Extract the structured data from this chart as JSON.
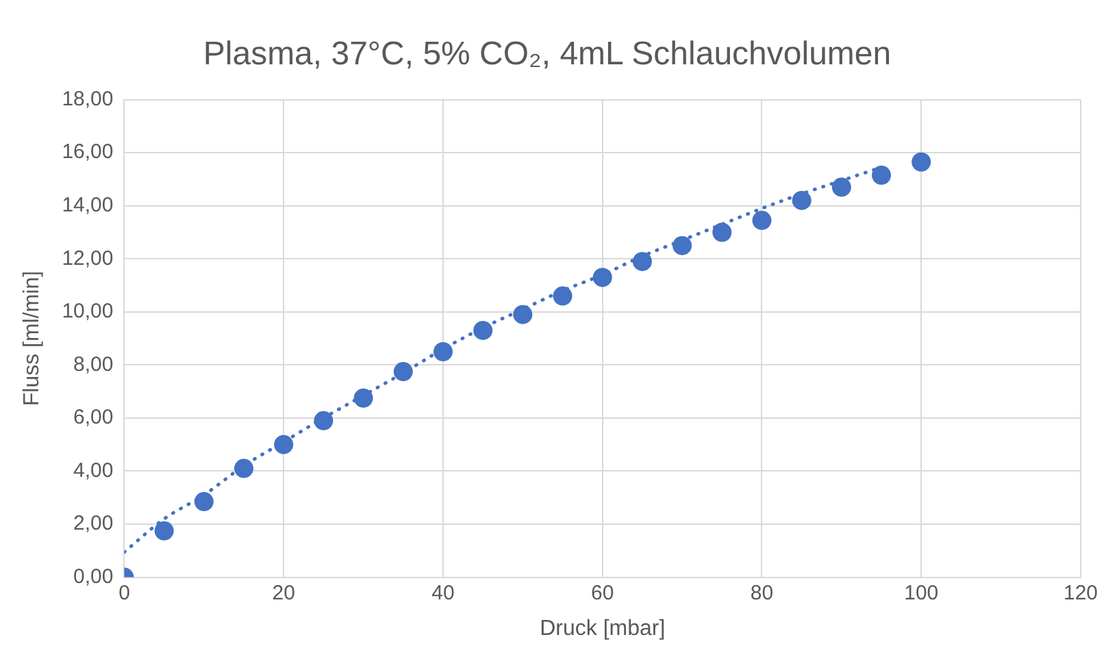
{
  "chart_data": {
    "type": "scatter",
    "title": "Plasma, 37°C, 5% CO₂, 4mL Schlauchvolumen",
    "xlabel": "Druck [mbar]",
    "ylabel": "Fluss [ml/min]",
    "x": [
      0,
      5,
      10,
      15,
      20,
      25,
      30,
      35,
      40,
      45,
      50,
      55,
      60,
      65,
      70,
      75,
      80,
      85,
      90,
      95,
      100
    ],
    "series": [
      {
        "color": "#4472c4",
        "marker": "circle",
        "values": [
          0,
          1.75,
          2.85,
          4.1,
          5.0,
          5.9,
          6.75,
          7.75,
          8.5,
          9.3,
          9.9,
          10.6,
          11.3,
          11.9,
          12.5,
          13.0,
          13.45,
          14.2,
          14.7,
          15.15,
          15.65
        ]
      },
      {
        "type": "line",
        "color": "#4472c4",
        "line_style": "dotted",
        "marker": "none",
        "x": [
          0,
          5,
          10,
          15,
          20,
          25,
          30,
          35,
          40,
          45,
          50,
          55,
          60,
          65,
          70,
          75,
          80,
          85,
          90,
          95
        ],
        "values": [
          0.95,
          2.2,
          3.1,
          4.2,
          5.1,
          6.0,
          6.85,
          7.7,
          8.6,
          9.4,
          10.1,
          10.8,
          11.4,
          12.1,
          12.7,
          13.3,
          13.9,
          14.45,
          14.95,
          15.45
        ]
      }
    ],
    "xlim": [
      0,
      120
    ],
    "xticks": [
      0,
      20,
      40,
      60,
      80,
      100,
      120
    ],
    "ylim": [
      0,
      18
    ],
    "yticks": [
      {
        "value": 0,
        "label": "0,00"
      },
      {
        "value": 2,
        "label": "2,00"
      },
      {
        "value": 4,
        "label": "4,00"
      },
      {
        "value": 6,
        "label": "6,00"
      },
      {
        "value": 8,
        "label": "8,00"
      },
      {
        "value": 10,
        "label": "10,00"
      },
      {
        "value": 12,
        "label": "12,00"
      },
      {
        "value": 14,
        "label": "14,00"
      },
      {
        "value": 16,
        "label": "16,00"
      },
      {
        "value": 18,
        "label": "18,00"
      }
    ],
    "grid": true,
    "legend": false
  }
}
